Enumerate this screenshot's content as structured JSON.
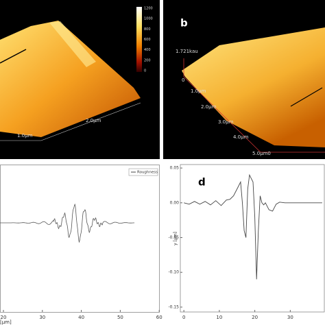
{
  "panels": {
    "a": {
      "colorbar_ticks": [
        "1200",
        "1000",
        "800",
        "600",
        "400",
        "200",
        "0"
      ],
      "axis_labels": [
        "2.0µm",
        "1.0µm"
      ]
    },
    "b": {
      "label": "b",
      "z_label": "1.721kau",
      "axis_labels": [
        "0",
        "1.0µm",
        "2.0µm",
        "3.0µm",
        "4.0µm",
        "5.0µm0"
      ]
    },
    "c": {
      "legend": "Roughness",
      "xticks": [
        "20",
        "30",
        "40",
        "50",
        "60"
      ],
      "xlabel": "[µm]"
    }
  },
  "chart_data": {
    "type": "line",
    "label": "d",
    "ylabel": "y [µm]",
    "x": [
      0,
      1.5,
      3,
      4.5,
      6,
      7.5,
      9,
      10.5,
      12,
      13,
      14,
      15,
      16,
      16.5,
      17,
      17.5,
      18,
      18.5,
      19,
      19.5,
      20,
      20.5,
      21,
      21.5,
      22,
      22.5,
      23,
      24,
      25,
      26,
      27,
      28.5,
      30,
      31.5,
      33,
      34.5,
      36,
      37,
      38,
      39
    ],
    "series": [
      {
        "color": "#444444",
        "values": [
          0,
          -0.002,
          0.002,
          -0.002,
          0.002,
          -0.003,
          0.003,
          -0.004,
          0.004,
          0.005,
          0.01,
          0.02,
          0.03,
          0.0,
          -0.04,
          -0.05,
          0.02,
          0.04,
          0.035,
          0.03,
          -0.02,
          -0.11,
          -0.04,
          0.01,
          0.0,
          -0.003,
          0.0,
          -0.01,
          -0.012,
          -0.002,
          0.001,
          0,
          0,
          0,
          0,
          0,
          0,
          0,
          0,
          0
        ]
      }
    ],
    "xlim": [
      -1,
      39.6
    ],
    "ylim": [
      -0.157,
      0.055
    ],
    "xticks": [
      0,
      10,
      20,
      30
    ],
    "yticks": [
      0.05,
      {
        "value": 0,
        "label": "0.00"
      },
      -0.05,
      {
        "value": -0.1,
        "label": "-0.10"
      },
      -0.15
    ]
  }
}
